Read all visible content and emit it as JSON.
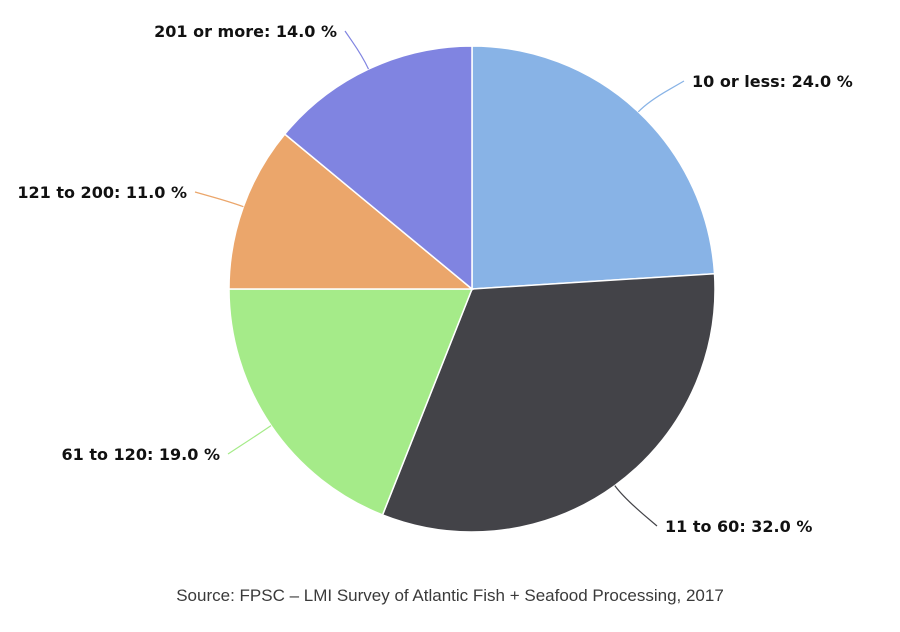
{
  "chart_data": {
    "type": "pie",
    "start_angle_deg": 0,
    "direction": "clockwise",
    "slices": [
      {
        "label": "10 or less",
        "value": 24.0,
        "display": "10 or less: 24.0 %",
        "color": "#88b3e6"
      },
      {
        "label": "11 to 60",
        "value": 32.0,
        "display": "11 to 60: 32.0 %",
        "color": "#434348"
      },
      {
        "label": "61 to 120",
        "value": 19.0,
        "display": "61 to 120: 19.0 %",
        "color": "#a5eb89"
      },
      {
        "label": "121 to 200",
        "value": 11.0,
        "display": "121 to 200: 11.0 %",
        "color": "#eba66b"
      },
      {
        "label": "201 or more",
        "value": 14.0,
        "display": "201 or more: 14.0 %",
        "color": "#8084e1"
      }
    ]
  },
  "source": "Source: FPSC – LMI Survey of Atlantic Fish + Seafood Processing, 2017"
}
